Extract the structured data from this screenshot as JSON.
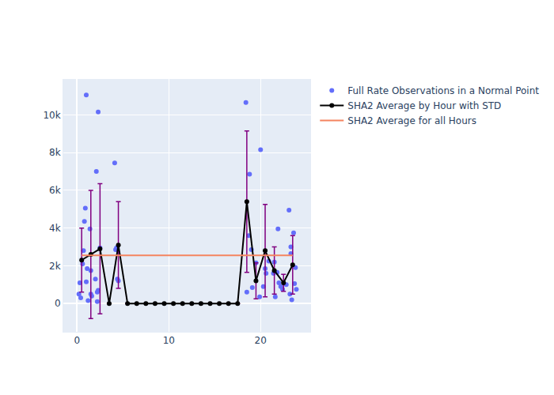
{
  "chart_data": {
    "type": "scatter",
    "grid": true,
    "legend": "right",
    "xlim": [
      -1.5,
      25.5
    ],
    "xticks": [
      0,
      10,
      20
    ],
    "ylim": [
      -1500,
      11900
    ],
    "yticks": [
      0,
      {
        "value": 2000,
        "label": "2k"
      },
      {
        "value": 4000,
        "label": "4k"
      },
      {
        "value": 6000,
        "label": "6k"
      },
      {
        "value": 8000,
        "label": "8k"
      },
      {
        "value": 10000,
        "label": "10k"
      }
    ],
    "series": [
      {
        "name": "Full Rate Observations in a Normal Point",
        "type": "scatter",
        "marker": "circle",
        "color": "#636efa",
        "x": [
          0.2,
          0.3,
          0.4,
          0.6,
          0.7,
          0.8,
          0.9,
          1.0,
          1.0,
          1.1,
          1.2,
          1.4,
          1.5,
          1.5,
          1.6,
          2.0,
          2.1,
          2.2,
          2.2,
          2.3,
          2.3,
          2.5,
          4.1,
          4.2,
          4.3,
          4.4,
          4.5,
          18.4,
          18.5,
          18.7,
          18.8,
          19.0,
          19.1,
          19.5,
          19.9,
          20.0,
          20.3,
          20.5,
          20.6,
          20.9,
          21.4,
          21.5,
          21.6,
          21.8,
          21.9,
          22.0,
          22.2,
          22.4,
          22.8,
          23.1,
          23.2,
          23.3,
          23.3,
          23.4,
          23.6,
          23.7,
          23.8,
          23.9
        ],
        "values": [
          500,
          1100,
          300,
          2100,
          2800,
          4350,
          5050,
          1150,
          11050,
          1850,
          150,
          3950,
          1750,
          500,
          400,
          1300,
          7000,
          100,
          600,
          10150,
          700,
          2950,
          7450,
          2850,
          2950,
          1300,
          1200,
          10650,
          600,
          3600,
          6850,
          2850,
          850,
          2150,
          350,
          8150,
          900,
          1850,
          1600,
          2250,
          1600,
          2200,
          350,
          1650,
          3950,
          1100,
          900,
          750,
          1000,
          4950,
          500,
          2650,
          3000,
          200,
          3750,
          1050,
          1900,
          750
        ]
      },
      {
        "name": "SHA2 Average by Hour with STD",
        "type": "line",
        "marker": "circle",
        "color": "#000000",
        "error_color": "#800080",
        "x": [
          0.5,
          1.5,
          2.5,
          3.5,
          4.5,
          5.5,
          6.5,
          7.5,
          8.5,
          9.5,
          10.5,
          11.5,
          12.5,
          13.5,
          14.5,
          15.5,
          16.5,
          17.5,
          18.5,
          19.5,
          20.5,
          21.5,
          22.5,
          23.5
        ],
        "values": [
          2300,
          2600,
          2900,
          0,
          3100,
          0,
          0,
          0,
          0,
          0,
          0,
          0,
          0,
          0,
          0,
          0,
          0,
          0,
          5400,
          1200,
          2800,
          1750,
          1100,
          2050
        ],
        "error": [
          1700,
          3400,
          3450,
          0,
          2300,
          0,
          0,
          0,
          0,
          0,
          0,
          0,
          0,
          0,
          0,
          0,
          0,
          0,
          3750,
          950,
          2450,
          1250,
          450,
          1550
        ]
      },
      {
        "name": "SHA2 Average for all Hours",
        "type": "line",
        "color": "#f4845f",
        "x": [
          0.5,
          23.5
        ],
        "values": [
          2550,
          2550
        ]
      }
    ]
  }
}
